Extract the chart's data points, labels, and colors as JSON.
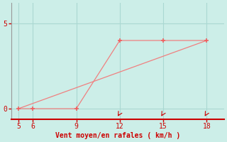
{
  "line1_x": [
    5,
    6,
    9,
    12,
    15,
    18
  ],
  "line1_y": [
    0,
    0,
    0,
    4,
    4,
    4
  ],
  "line2_x": [
    5,
    18
  ],
  "line2_y": [
    0,
    4
  ],
  "line_color": "#f08080",
  "marker_color": "#f06060",
  "bg_color": "#cceee8",
  "grid_color": "#aad8d2",
  "axis_color": "#999999",
  "bottom_line_color": "#cc0000",
  "xlabel": "Vent moyen/en rafales ( km/h )",
  "xlabel_color": "#cc0000",
  "tick_color": "#cc0000",
  "xlim": [
    4.5,
    19.2
  ],
  "ylim": [
    -0.6,
    6.2
  ],
  "xticks": [
    5,
    6,
    9,
    12,
    15,
    18
  ],
  "yticks": [
    0,
    5
  ],
  "figsize": [
    3.2,
    2.0
  ],
  "dpi": 100
}
